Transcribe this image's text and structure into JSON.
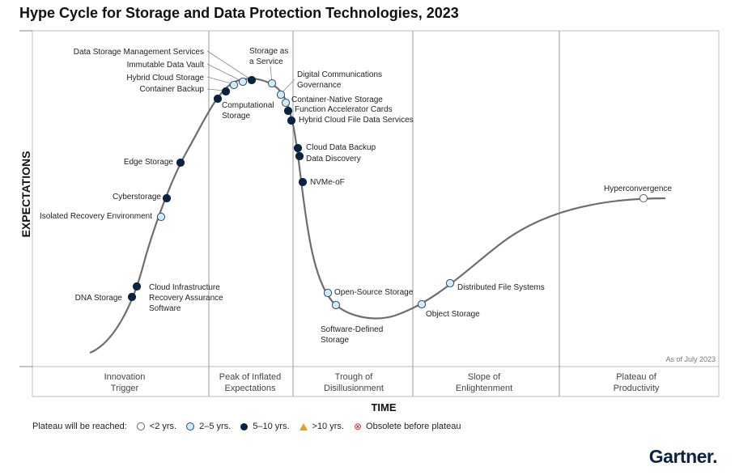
{
  "title": "Hype Cycle for Storage and Data Protection Technologies, 2023",
  "y_axis_label": "EXPECTATIONS",
  "x_axis_label": "TIME",
  "as_of": "As of July 2023",
  "phases": [
    {
      "line1": "Innovation",
      "line2": "Trigger"
    },
    {
      "line1": "Peak of Inflated",
      "line2": "Expectations"
    },
    {
      "line1": "Trough of",
      "line2": "Disillusionment"
    },
    {
      "line1": "Slope of",
      "line2": "Enlightenment"
    },
    {
      "line1": "Plateau of",
      "line2": "Productivity"
    }
  ],
  "legend": {
    "prefix": "Plateau will be reached:",
    "items": [
      {
        "key": "lt2",
        "label": "<2 yrs."
      },
      {
        "key": "d25",
        "label": "2–5 yrs."
      },
      {
        "key": "d510",
        "label": "5–10 yrs."
      },
      {
        "key": "gt10",
        "label": ">10 yrs."
      },
      {
        "key": "obsolete",
        "label": "Obsolete before plateau"
      }
    ]
  },
  "logo": "Gartner.",
  "colors": {
    "curve": "#6e6e6e",
    "lt2": "#ffffff",
    "d25": "#d4ebf7",
    "d510": "#0b2240",
    "gt10": "#e3a21a",
    "obsolete": "#d62b2b"
  },
  "chart_data": {
    "type": "hype-cycle",
    "phase_order": [
      "Innovation Trigger",
      "Peak of Inflated Expectations",
      "Trough of Disillusionment",
      "Slope of Enlightenment",
      "Plateau of Productivity"
    ],
    "technologies": [
      {
        "name": "DNA Storage",
        "phase": "Innovation Trigger",
        "years": "5-10"
      },
      {
        "name": "Cloud Infrastructure Recovery Assurance Software",
        "phase": "Innovation Trigger",
        "years": "5-10"
      },
      {
        "name": "Isolated Recovery Environment",
        "phase": "Innovation Trigger",
        "years": "2-5"
      },
      {
        "name": "Cyberstorage",
        "phase": "Innovation Trigger",
        "years": "5-10"
      },
      {
        "name": "Edge Storage",
        "phase": "Innovation Trigger",
        "years": "5-10"
      },
      {
        "name": "Computational Storage",
        "phase": "Peak of Inflated Expectations",
        "years": "5-10"
      },
      {
        "name": "Container Backup",
        "phase": "Peak of Inflated Expectations",
        "years": "5-10"
      },
      {
        "name": "Hybrid Cloud Storage",
        "phase": "Peak of Inflated Expectations",
        "years": "2-5"
      },
      {
        "name": "Immutable Data Vault",
        "phase": "Peak of Inflated Expectations",
        "years": "2-5"
      },
      {
        "name": "Data Storage Management Services",
        "phase": "Peak of Inflated Expectations",
        "years": "5-10"
      },
      {
        "name": "Storage as a Service",
        "phase": "Peak of Inflated Expectations",
        "years": "2-5"
      },
      {
        "name": "Digital Communications Governance",
        "phase": "Trough of Disillusionment",
        "years": "2-5"
      },
      {
        "name": "Container-Native Storage",
        "phase": "Trough of Disillusionment",
        "years": "2-5"
      },
      {
        "name": "Function Accelerator Cards",
        "phase": "Trough of Disillusionment",
        "years": "5-10"
      },
      {
        "name": "Hybrid Cloud File Data Services",
        "phase": "Trough of Disillusionment",
        "years": "5-10"
      },
      {
        "name": "Cloud Data Backup",
        "phase": "Trough of Disillusionment",
        "years": "5-10"
      },
      {
        "name": "Data Discovery",
        "phase": "Trough of Disillusionment",
        "years": "5-10"
      },
      {
        "name": "NVMe-oF",
        "phase": "Trough of Disillusionment",
        "years": "5-10"
      },
      {
        "name": "Open-Source Storage",
        "phase": "Trough of Disillusionment",
        "years": "2-5"
      },
      {
        "name": "Software-Defined Storage",
        "phase": "Trough of Disillusionment",
        "years": "2-5"
      },
      {
        "name": "Object Storage",
        "phase": "Slope of Enlightenment",
        "years": "2-5"
      },
      {
        "name": "Distributed File Systems",
        "phase": "Slope of Enlightenment",
        "years": "2-5"
      },
      {
        "name": "Hyperconvergence",
        "phase": "Plateau of Productivity",
        "years": "<2"
      }
    ]
  }
}
